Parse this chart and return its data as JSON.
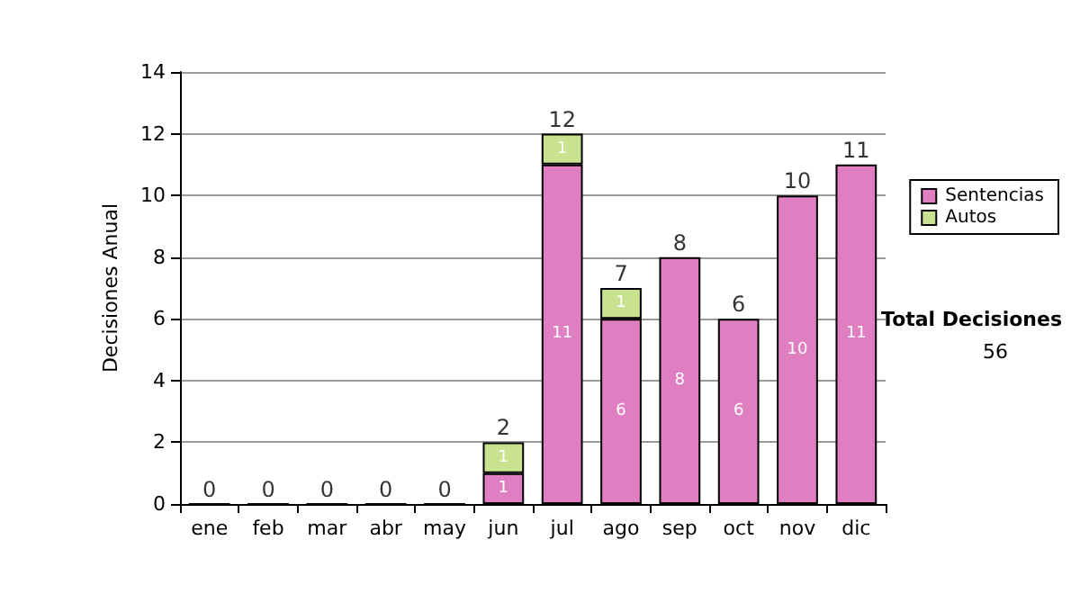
{
  "chart_data": {
    "type": "bar",
    "ylabel": "Decisiones Anual",
    "categories": [
      "ene",
      "feb",
      "mar",
      "abr",
      "may",
      "jun",
      "jul",
      "ago",
      "sep",
      "oct",
      "nov",
      "dic"
    ],
    "series": [
      {
        "name": "Sentencias",
        "color": "#df7fc1",
        "values": [
          0,
          0,
          0,
          0,
          0,
          1,
          11,
          6,
          8,
          6,
          10,
          11
        ],
        "value_labels": [
          null,
          null,
          null,
          null,
          null,
          "1",
          "11",
          "6",
          "8",
          "6",
          "10",
          "11"
        ]
      },
      {
        "name": "Autos",
        "color": "#c9e28f",
        "values": [
          0,
          0,
          0,
          0,
          0,
          1,
          1,
          1,
          0,
          0,
          0,
          0
        ],
        "value_labels": [
          null,
          null,
          null,
          null,
          null,
          "1",
          "1",
          "1",
          null,
          null,
          null,
          null
        ]
      }
    ],
    "stacked": true,
    "totals": [
      "0",
      "0",
      "0",
      "0",
      "0",
      "2",
      "12",
      "7",
      "8",
      "6",
      "10",
      "11"
    ],
    "ylim": [
      0,
      14
    ],
    "yticks": [
      0,
      2,
      4,
      6,
      8,
      10,
      12,
      14
    ],
    "grid": "y",
    "legend": "right",
    "annotations": [
      "Total Decisiones",
      "56"
    ]
  }
}
